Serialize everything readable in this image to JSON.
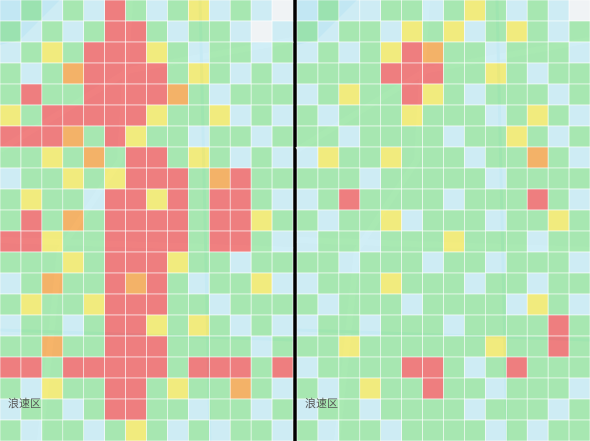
{
  "colors": [
    "#f1f4f6",
    "#c9ecf5",
    "#9be6a6",
    "#f2ea6a",
    "#f5a850",
    "#ef6b6b"
  ],
  "panels": [
    {
      "label": "浪速区",
      "cells": [
        [
          1,
          2,
          1,
          2,
          1,
          5,
          2,
          1,
          2,
          3,
          1,
          2,
          1,
          0
        ],
        [
          2,
          1,
          2,
          1,
          2,
          5,
          5,
          2,
          1,
          2,
          2,
          1,
          0,
          1
        ],
        [
          1,
          2,
          3,
          2,
          5,
          5,
          5,
          3,
          2,
          1,
          2,
          2,
          1,
          2
        ],
        [
          2,
          1,
          2,
          4,
          5,
          5,
          5,
          5,
          2,
          3,
          2,
          1,
          2,
          1
        ],
        [
          2,
          5,
          2,
          2,
          5,
          5,
          5,
          5,
          4,
          2,
          1,
          2,
          2,
          2
        ],
        [
          3,
          2,
          5,
          5,
          5,
          5,
          5,
          3,
          2,
          2,
          3,
          1,
          2,
          1
        ],
        [
          5,
          5,
          5,
          4,
          2,
          5,
          3,
          2,
          2,
          1,
          2,
          2,
          1,
          2
        ],
        [
          2,
          2,
          3,
          2,
          4,
          2,
          5,
          5,
          2,
          3,
          2,
          1,
          2,
          1
        ],
        [
          1,
          2,
          2,
          3,
          2,
          3,
          5,
          5,
          5,
          2,
          4,
          5,
          2,
          2
        ],
        [
          2,
          3,
          2,
          2,
          1,
          5,
          5,
          3,
          5,
          2,
          5,
          5,
          2,
          1
        ],
        [
          2,
          5,
          2,
          4,
          2,
          5,
          5,
          5,
          5,
          2,
          5,
          5,
          3,
          2
        ],
        [
          5,
          5,
          3,
          2,
          2,
          5,
          5,
          5,
          5,
          2,
          5,
          5,
          2,
          1
        ],
        [
          2,
          2,
          2,
          3,
          2,
          5,
          5,
          5,
          3,
          2,
          2,
          1,
          2,
          2
        ],
        [
          1,
          2,
          4,
          2,
          2,
          5,
          4,
          5,
          2,
          1,
          2,
          2,
          3,
          1
        ],
        [
          2,
          3,
          2,
          2,
          3,
          5,
          5,
          5,
          2,
          2,
          1,
          2,
          2,
          2
        ],
        [
          1,
          2,
          2,
          1,
          2,
          5,
          5,
          3,
          2,
          3,
          2,
          1,
          2,
          1
        ],
        [
          2,
          2,
          4,
          2,
          2,
          5,
          5,
          5,
          2,
          2,
          2,
          2,
          1,
          2
        ],
        [
          5,
          5,
          2,
          5,
          5,
          5,
          5,
          5,
          2,
          5,
          5,
          5,
          2,
          5
        ],
        [
          2,
          1,
          3,
          2,
          2,
          5,
          5,
          2,
          3,
          2,
          2,
          4,
          2,
          1
        ],
        [
          1,
          2,
          2,
          1,
          2,
          5,
          5,
          2,
          2,
          1,
          2,
          2,
          1,
          2
        ],
        [
          2,
          1,
          2,
          2,
          1,
          2,
          3,
          2,
          1,
          2,
          1,
          2,
          2,
          1
        ]
      ]
    },
    {
      "label": "浪速区",
      "cells": [
        [
          1,
          2,
          1,
          1,
          2,
          2,
          1,
          2,
          3,
          2,
          1,
          2,
          1,
          0
        ],
        [
          2,
          1,
          2,
          2,
          1,
          3,
          2,
          3,
          1,
          2,
          3,
          2,
          1,
          2
        ],
        [
          1,
          2,
          1,
          2,
          3,
          5,
          4,
          2,
          2,
          1,
          2,
          2,
          2,
          1
        ],
        [
          2,
          2,
          2,
          2,
          5,
          5,
          5,
          2,
          2,
          3,
          2,
          1,
          2,
          2
        ],
        [
          1,
          2,
          3,
          2,
          2,
          5,
          3,
          2,
          1,
          2,
          2,
          2,
          1,
          2
        ],
        [
          2,
          1,
          2,
          2,
          2,
          3,
          2,
          2,
          2,
          1,
          2,
          3,
          2,
          1
        ],
        [
          2,
          2,
          1,
          2,
          2,
          2,
          2,
          1,
          2,
          2,
          3,
          2,
          1,
          2
        ],
        [
          1,
          3,
          2,
          2,
          3,
          2,
          2,
          2,
          1,
          2,
          2,
          4,
          2,
          1
        ],
        [
          2,
          2,
          2,
          1,
          2,
          2,
          2,
          2,
          2,
          1,
          2,
          2,
          2,
          2
        ],
        [
          1,
          2,
          5,
          2,
          2,
          2,
          2,
          1,
          2,
          2,
          2,
          5,
          2,
          1
        ],
        [
          2,
          1,
          2,
          2,
          3,
          1,
          2,
          2,
          2,
          1,
          2,
          2,
          3,
          2
        ],
        [
          1,
          2,
          2,
          1,
          2,
          2,
          2,
          3,
          2,
          2,
          2,
          1,
          2,
          2
        ],
        [
          2,
          2,
          1,
          2,
          2,
          2,
          1,
          2,
          2,
          1,
          2,
          2,
          2,
          1
        ],
        [
          1,
          2,
          2,
          2,
          3,
          2,
          2,
          2,
          1,
          2,
          2,
          1,
          2,
          2
        ],
        [
          2,
          1,
          2,
          2,
          2,
          1,
          2,
          2,
          2,
          2,
          1,
          3,
          2,
          1
        ],
        [
          1,
          2,
          2,
          1,
          2,
          2,
          2,
          1,
          2,
          2,
          2,
          2,
          5,
          2
        ],
        [
          2,
          2,
          3,
          2,
          2,
          2,
          2,
          2,
          2,
          3,
          2,
          2,
          5,
          2
        ],
        [
          1,
          2,
          2,
          2,
          2,
          5,
          5,
          2,
          1,
          2,
          5,
          2,
          2,
          2
        ],
        [
          2,
          1,
          2,
          3,
          2,
          2,
          5,
          2,
          2,
          1,
          2,
          2,
          2,
          1
        ],
        [
          1,
          2,
          2,
          1,
          2,
          2,
          2,
          2,
          1,
          2,
          2,
          2,
          1,
          2
        ],
        [
          2,
          1,
          2,
          2,
          1,
          2,
          2,
          2,
          2,
          1,
          2,
          1,
          2,
          2
        ]
      ]
    }
  ]
}
